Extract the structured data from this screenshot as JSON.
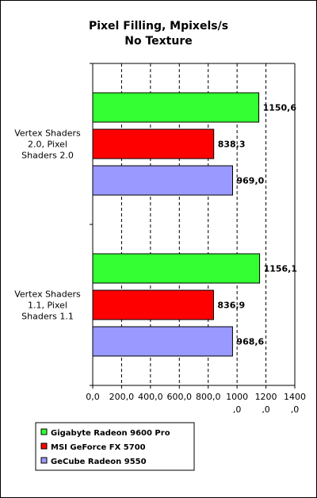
{
  "chart_data": {
    "type": "bar",
    "orientation": "horizontal",
    "title": "Pixel Filling, Mpixels/s",
    "subtitle": "No Texture",
    "categories": [
      [
        "Vertex Shaders",
        "2.0, Pixel",
        "Shaders 2.0"
      ],
      [
        "Vertex Shaders",
        "1.1, Pixel",
        "Shaders 1.1"
      ]
    ],
    "series": [
      {
        "name": "Gigabyte Radeon 9600 Pro",
        "color": "#33ff33",
        "values": [
          1150.6,
          1156.1
        ],
        "labels": [
          "1150,6",
          "1156,1"
        ]
      },
      {
        "name": "MSI GeForce FX 5700",
        "color": "#ff0000",
        "values": [
          838.3,
          836.9
        ],
        "labels": [
          "838,3",
          "836,9"
        ]
      },
      {
        "name": "GeCube Radeon 9550",
        "color": "#9999ff",
        "values": [
          969.0,
          968.6
        ],
        "labels": [
          "969,0",
          "968,6"
        ]
      }
    ],
    "xlim": [
      0,
      1400
    ],
    "xticks": [
      0,
      200,
      400,
      600,
      800,
      1000,
      1200,
      1400
    ],
    "xtick_labels": [
      [
        "0,0"
      ],
      [
        "200,0"
      ],
      [
        "400,0"
      ],
      [
        "600,0"
      ],
      [
        "800,0"
      ],
      [
        "1000",
        ",0"
      ],
      [
        "1200",
        ",0"
      ],
      [
        "1400",
        ",0"
      ]
    ],
    "grid": "vertical dashed",
    "legend_position": "bottom"
  }
}
